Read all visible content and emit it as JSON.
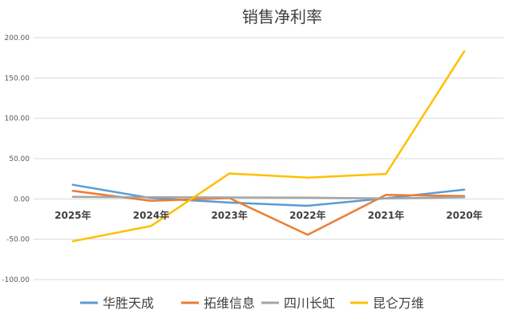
{
  "chart_data": {
    "type": "line",
    "title": "销售净利率",
    "xlabel": "",
    "ylabel": "",
    "categories": [
      "2025年",
      "2024年",
      "2023年",
      "2022年",
      "2021年",
      "2020年"
    ],
    "ylim": [
      -100,
      200
    ],
    "yticks": [
      "200.00",
      "150.00",
      "100.00",
      "50.00",
      "0.00",
      "-50.00",
      "-100.00"
    ],
    "grid": true,
    "legend_position": "bottom",
    "series": [
      {
        "name": "华胜天成",
        "color": "#5B9BD5",
        "values": [
          17.5,
          1.0,
          -4.5,
          -8.5,
          0.8,
          11.5
        ]
      },
      {
        "name": "拓维信息",
        "color": "#ED7D31",
        "values": [
          10.0,
          -2.5,
          1.0,
          -44.5,
          5.0,
          3.5
        ]
      },
      {
        "name": "四川长虹",
        "color": "#A5A5A5",
        "values": [
          2.5,
          2.0,
          1.8,
          1.5,
          0.5,
          2.0
        ]
      },
      {
        "name": "昆仑万维",
        "color": "#FFC000",
        "values": [
          -52.5,
          -33.5,
          31.5,
          26.5,
          31.0,
          183.0
        ]
      }
    ]
  }
}
